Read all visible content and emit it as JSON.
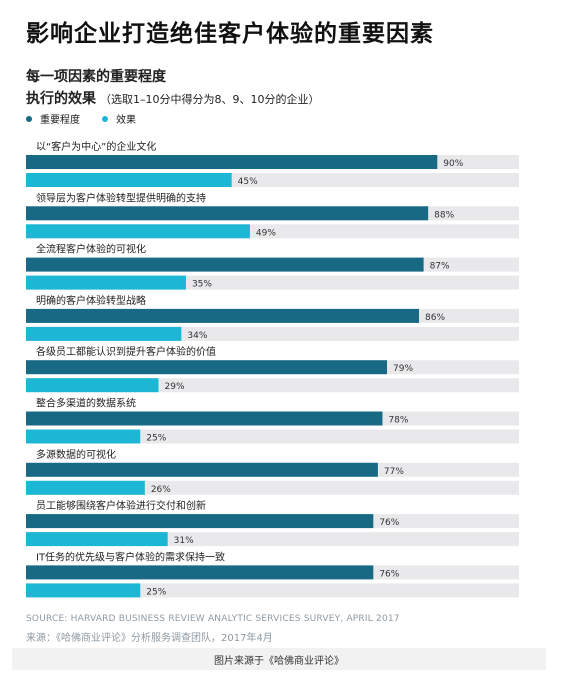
{
  "title": "影响企业打造绝佳客户体验的重要因素",
  "subtitle_line1": "每一项因素的重要程度",
  "subtitle_line2": "执行的效果",
  "subtitle_note": "（选取1–10分中得分为8、9、10分的企业）",
  "colors": {
    "importance": "#186a84",
    "effect": "#1bb7d4",
    "track": "#e9e9ec"
  },
  "chart_data": {
    "type": "bar",
    "orientation": "horizontal",
    "categories": [
      "以“客户为中心”的企业文化",
      "领导层为客户体验转型提供明确的支持",
      "全流程客户体验的可视化",
      "明确的客户体验转型战略",
      "各级员工都能认识到提升客户体验的价值",
      "整合多渠道的数据系统",
      "多源数据的可视化",
      "员工能够围绕客户体验进行交付和创新",
      "IT任务的优先级与客户体验的需求保持一致"
    ],
    "series": [
      {
        "name": "重要程度",
        "values": [
          90,
          88,
          87,
          86,
          79,
          78,
          77,
          76,
          76
        ]
      },
      {
        "name": "效果",
        "values": [
          45,
          49,
          35,
          34,
          29,
          25,
          26,
          31,
          25
        ]
      }
    ],
    "value_labels": {
      "importance": [
        "90%",
        "88%",
        "87%",
        "86%",
        "79%",
        "78%",
        "77%",
        "76%",
        "76%"
      ],
      "effect": [
        "45%",
        "49%",
        "35%",
        "34%",
        "29%",
        "25%",
        "26%",
        "31%",
        "25%"
      ]
    },
    "xlim": [
      0,
      100
    ],
    "legend": "top-left",
    "grid": false
  },
  "source_en": "SOURCE: HARVARD BUSINESS REVIEW ANALYTIC SERVICES SURVEY, APRIL 2017",
  "source_cn": "来源：《哈佛商业评论》分析服务调查团队，2017年4月",
  "caption": "图片来源于《哈佛商业评论》"
}
